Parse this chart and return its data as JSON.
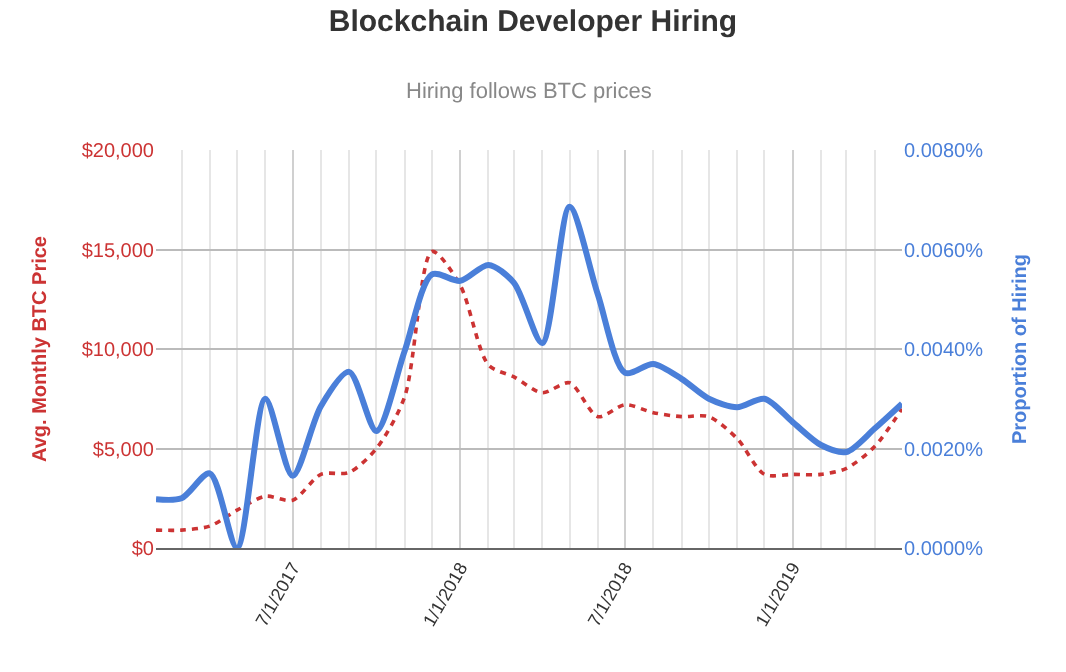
{
  "chart_data": {
    "type": "line",
    "title": "Blockchain Developer Hiring",
    "subtitle": "Hiring follows BTC prices",
    "ylabel": "Avg. Monthly BTC Price",
    "y2label": "Proportion of Hiring",
    "x": [
      "2017-02",
      "2017-03",
      "2017-04",
      "2017-05",
      "2017-06",
      "2017-07",
      "2017-08",
      "2017-09",
      "2017-10",
      "2017-11",
      "2017-12",
      "2018-01",
      "2018-02",
      "2018-03",
      "2018-04",
      "2018-05",
      "2018-06",
      "2018-07",
      "2018-08",
      "2018-09",
      "2018-10",
      "2018-11",
      "2018-12",
      "2019-01",
      "2019-02",
      "2019-03",
      "2019-04",
      "2019-05"
    ],
    "series": [
      {
        "color": "#cc3333",
        "line_style": "dotted",
        "values": [
          900,
          900,
          1100,
          1900,
          2600,
          2400,
          3700,
          3800,
          5000,
          7600,
          14900,
          13200,
          9200,
          8600,
          7800,
          8300,
          6600,
          7200,
          6800,
          6600,
          6600,
          5500,
          3700,
          3700,
          3700,
          4000,
          5100,
          7000
        ]
      },
      {
        "color": "#4a7fd9",
        "line_style": "solid",
        "axis": "y2",
        "values": [
          0.00098,
          0.001,
          0.0015,
          0.0,
          0.003,
          0.00145,
          0.00285,
          0.00354,
          0.00235,
          0.00396,
          0.0055,
          0.00537,
          0.00569,
          0.00533,
          0.00412,
          0.00686,
          0.0051,
          0.00352,
          0.0037,
          0.0034,
          0.003,
          0.00283,
          0.003,
          0.00253,
          0.00207,
          0.00193,
          0.0024,
          0.0029
        ]
      }
    ],
    "xlim": [
      "2017-02",
      "2019-05"
    ],
    "xticks": [
      {
        "value": "2017-07",
        "label": "7/1/2017"
      },
      {
        "value": "2018-01",
        "label": "1/1/2018"
      },
      {
        "value": "2018-07",
        "label": "7/1/2018"
      },
      {
        "value": "2019-01",
        "label": "1/1/2019"
      }
    ],
    "ylim": [
      0,
      20000
    ],
    "yticks": [
      {
        "value": 0,
        "label": "$0"
      },
      {
        "value": 5000,
        "label": "$5,000"
      },
      {
        "value": 10000,
        "label": "$10,000"
      },
      {
        "value": 15000,
        "label": "$15,000"
      },
      {
        "value": 20000,
        "label": "$20,000"
      }
    ],
    "y2lim": [
      0,
      0.008
    ],
    "y2ticks": [
      {
        "value": 0,
        "label": "0.0000%"
      },
      {
        "value": 0.002,
        "label": "0.0020%"
      },
      {
        "value": 0.004,
        "label": "0.0040%"
      },
      {
        "value": 0.006,
        "label": "0.0060%"
      },
      {
        "value": 0.008,
        "label": "0.0080%"
      }
    ],
    "grid": true,
    "marker": "none"
  }
}
